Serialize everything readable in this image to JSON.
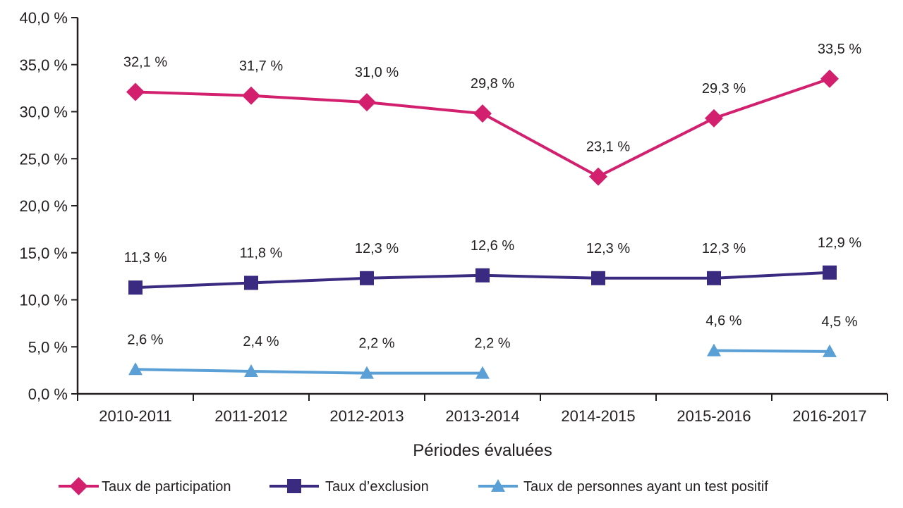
{
  "chart_data": {
    "type": "line",
    "title": "",
    "xlabel": "Périodes évaluées",
    "ylabel": "",
    "categories": [
      "2010-2011",
      "2011-2012",
      "2012-2013",
      "2013-2014",
      "2014-2015",
      "2015-2016",
      "2016-2017"
    ],
    "ylim": [
      0,
      40
    ],
    "y_ticks": [
      0,
      5,
      10,
      15,
      20,
      25,
      30,
      35,
      40
    ],
    "y_tick_labels": [
      "0,0 %",
      "5,0 %",
      "10,0 %",
      "15,0 %",
      "20,0 %",
      "25,0 %",
      "30,0 %",
      "35,0 %",
      "40,0 %"
    ],
    "grid": false,
    "legend_position": "bottom",
    "series": [
      {
        "name": "Taux de participation",
        "color": "#d21f6e",
        "marker": "diamond",
        "values": [
          32.1,
          31.7,
          31.0,
          29.8,
          23.1,
          29.3,
          33.5
        ],
        "labels": [
          "32,1 %",
          "31,7 %",
          "31,0 %",
          "29,8 %",
          "23,1 %",
          "29,3 %",
          "33,5 %"
        ]
      },
      {
        "name": "Taux d’exclusion",
        "color": "#3a2a80",
        "marker": "square",
        "values": [
          11.3,
          11.8,
          12.3,
          12.6,
          12.3,
          12.3,
          12.9
        ],
        "labels": [
          "11,3 %",
          "11,8 %",
          "12,3 %",
          "12,6 %",
          "12,3 %",
          "12,3 %",
          "12,9 %"
        ]
      },
      {
        "name": "Taux de personnes ayant un test positif",
        "color": "#5aa0d6",
        "marker": "triangle",
        "values": [
          2.6,
          2.4,
          2.2,
          2.2,
          null,
          4.6,
          4.5
        ],
        "labels": [
          "2,6 %",
          "2,4 %",
          "2,2 %",
          "2,2 %",
          "",
          "4,6 %",
          "4,5 %"
        ]
      }
    ]
  }
}
